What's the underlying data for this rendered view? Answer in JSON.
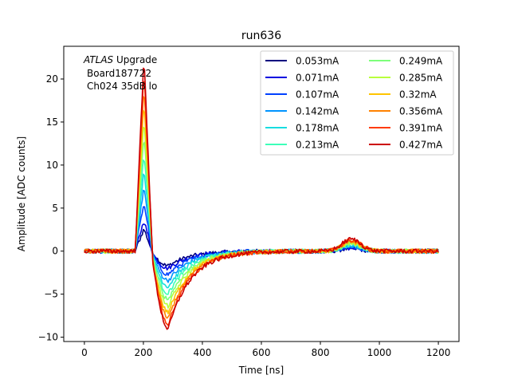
{
  "chart_data": {
    "type": "line",
    "title": "run636",
    "xlabel": "Time [ns]",
    "ylabel": "Amplitude [ADC counts]",
    "xlim": [
      -70,
      1270
    ],
    "ylim": [
      -10.5,
      23.8
    ],
    "xticks": [
      0,
      200,
      400,
      600,
      800,
      1000,
      1200
    ],
    "yticks": [
      -10,
      -5,
      0,
      5,
      10,
      15,
      20
    ],
    "grid": false,
    "legend_position": "top-right",
    "legend_columns": 2,
    "annotation": {
      "line1_italic": "ATLAS",
      "line1_rest": " Upgrade",
      "line2": "Board187722",
      "line3": "Ch024 35dB lo"
    },
    "series": [
      {
        "name": "0.053mA",
        "color": "#00007f",
        "peak": 2.6,
        "undershoot": -1.7,
        "bump": 0.3
      },
      {
        "name": "0.071mA",
        "color": "#0000e0",
        "peak": 3.6,
        "undershoot": -2.0,
        "bump": 0.4
      },
      {
        "name": "0.107mA",
        "color": "#0040ff",
        "peak": 5.6,
        "undershoot": -2.7,
        "bump": 0.5
      },
      {
        "name": "0.142mA",
        "color": "#0094ff",
        "peak": 7.5,
        "undershoot": -3.4,
        "bump": 0.6
      },
      {
        "name": "0.178mA",
        "color": "#17dde0",
        "peak": 9.5,
        "undershoot": -4.1,
        "bump": 0.7
      },
      {
        "name": "0.213mA",
        "color": "#3dffb9",
        "peak": 11.4,
        "undershoot": -4.9,
        "bump": 0.8
      },
      {
        "name": "0.249mA",
        "color": "#7dff7a",
        "peak": 13.4,
        "undershoot": -5.6,
        "bump": 0.9
      },
      {
        "name": "0.285mA",
        "color": "#b9ff3c",
        "peak": 15.3,
        "undershoot": -6.4,
        "bump": 1.0
      },
      {
        "name": "0.32mA",
        "color": "#ffc400",
        "peak": 17.3,
        "undershoot": -7.1,
        "bump": 1.1
      },
      {
        "name": "0.356mA",
        "color": "#ff8100",
        "peak": 19.2,
        "undershoot": -7.8,
        "bump": 1.2
      },
      {
        "name": "0.391mA",
        "color": "#ff3b00",
        "peak": 21.1,
        "undershoot": -8.5,
        "bump": 1.3
      },
      {
        "name": "0.427mA",
        "color": "#cc0000",
        "peak": 22.6,
        "undershoot": -9.0,
        "bump": 1.4
      }
    ]
  }
}
